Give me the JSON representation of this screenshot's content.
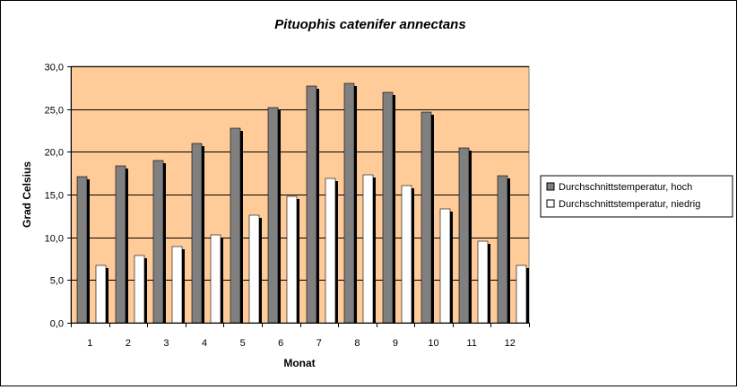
{
  "chart_data": {
    "type": "bar",
    "title": "Pituophis catenifer annectans",
    "xlabel": "Monat",
    "ylabel": "Grad Celsius",
    "categories": [
      "1",
      "2",
      "3",
      "4",
      "5",
      "6",
      "7",
      "8",
      "9",
      "10",
      "11",
      "12"
    ],
    "series": [
      {
        "name": "Durchschnittstemperatur, hoch",
        "color": "#808080",
        "values": [
          17.1,
          18.4,
          19.0,
          21.0,
          22.8,
          25.2,
          27.7,
          28.0,
          27.0,
          24.7,
          20.5,
          17.2
        ]
      },
      {
        "name": "Durchschnittstemperatur, niedrig",
        "color": "#ffffff",
        "values": [
          6.7,
          7.9,
          8.9,
          10.3,
          12.6,
          14.8,
          16.9,
          17.3,
          16.1,
          13.3,
          9.5,
          6.7
        ]
      }
    ],
    "ylim": [
      0,
      30
    ],
    "yticks": [
      "0,0",
      "5,0",
      "10,0",
      "15,0",
      "20,0",
      "25,0",
      "30,0"
    ],
    "grid": true,
    "plot_background": "#ffcc99",
    "legend_position": "right"
  }
}
